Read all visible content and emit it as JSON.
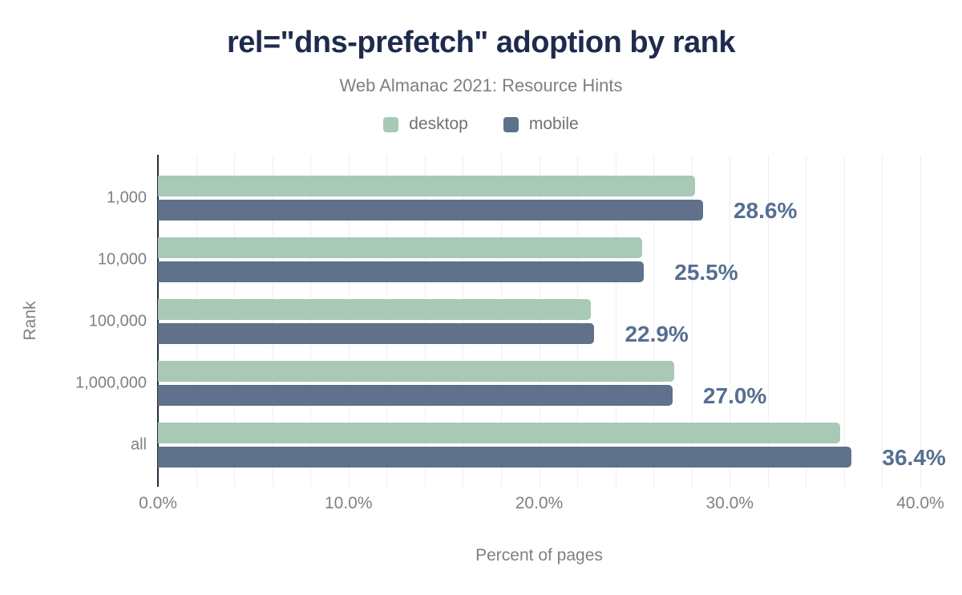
{
  "chart_data": {
    "type": "bar",
    "orientation": "horizontal",
    "title": "rel=\"dns-prefetch\" adoption by rank",
    "subtitle": "Web Almanac 2021: Resource Hints",
    "xlabel": "Percent of pages",
    "ylabel": "Rank",
    "categories": [
      "1,000",
      "10,000",
      "100,000",
      "1,000,000",
      "all"
    ],
    "series": [
      {
        "name": "desktop",
        "color": "#a8c9b6",
        "values": [
          28.2,
          25.4,
          22.7,
          27.1,
          35.8
        ]
      },
      {
        "name": "mobile",
        "color": "#5f718b",
        "values": [
          28.6,
          25.5,
          22.9,
          27.0,
          36.4
        ]
      }
    ],
    "bar_labels": [
      "28.6%",
      "25.5%",
      "22.9%",
      "27.0%",
      "36.4%"
    ],
    "bar_label_series": "mobile",
    "xlim": [
      0,
      40
    ],
    "xticks": [
      {
        "value": 0,
        "label": "0.0%"
      },
      {
        "value": 10,
        "label": "10.0%"
      },
      {
        "value": 20,
        "label": "20.0%"
      },
      {
        "value": 30,
        "label": "30.0%"
      },
      {
        "value": 40,
        "label": "40.0%"
      }
    ],
    "gridline_step": 2,
    "grid": "vertical",
    "legend_position": "top",
    "colors": {
      "title": "#1e2b4d",
      "subtitle": "#7c7f83",
      "axis_text": "#7d8185",
      "data_label": "#566f92",
      "axis_line": "#292c33",
      "gridline": "#efefef",
      "background": "#ffffff"
    }
  }
}
